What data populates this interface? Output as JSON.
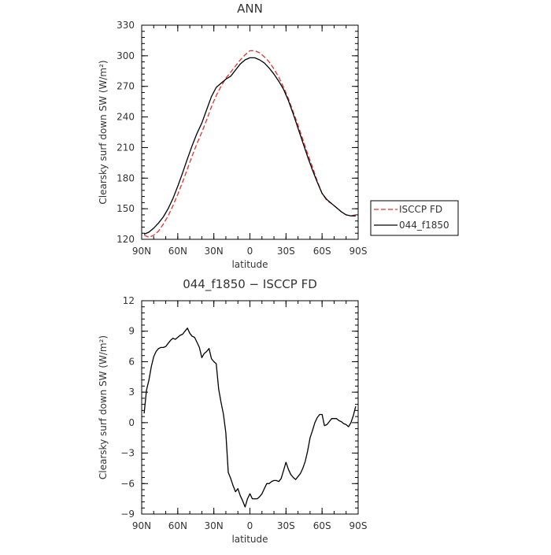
{
  "chart_data": [
    {
      "type": "line",
      "title": "ANN",
      "xlabel": "latitude",
      "ylabel": "Clearsky surf down SW (W/m²)",
      "xlim": [
        90,
        -90
      ],
      "ylim": [
        120,
        330
      ],
      "x_ticks": [
        90,
        60,
        30,
        0,
        -30,
        -60,
        -90
      ],
      "x_tick_labels": [
        "90N",
        "60N",
        "30N",
        "0",
        "30S",
        "60S",
        "90S"
      ],
      "y_ticks": [
        120,
        150,
        180,
        210,
        240,
        270,
        300,
        330
      ],
      "y_tick_labels": [
        "120",
        "150",
        "180",
        "210",
        "240",
        "270",
        "300",
        "330"
      ],
      "legend_position": "right",
      "series": [
        {
          "name": "ISCCP FD",
          "color": "#e8302a",
          "dash": "dashed",
          "x": [
            88,
            84,
            80,
            76,
            72,
            68,
            64,
            60,
            56,
            52,
            48,
            44,
            40,
            36,
            32,
            28,
            24,
            20,
            16,
            12,
            8,
            4,
            0,
            -4,
            -8,
            -12,
            -16,
            -20,
            -24,
            -28,
            -32,
            -36,
            -40,
            -44,
            -48,
            -52,
            -56,
            -60,
            -64,
            -68,
            -72,
            -76,
            -80,
            -84,
            -88
          ],
          "y": [
            124,
            122,
            124,
            128,
            135,
            143,
            153,
            164,
            176,
            189,
            202,
            214,
            225,
            237,
            250,
            261,
            270,
            278,
            284,
            290,
            296,
            301,
            305,
            305,
            303,
            299,
            294,
            287,
            279,
            269,
            258,
            245,
            232,
            218,
            204,
            191,
            177,
            165,
            158,
            155,
            151,
            147,
            144,
            143,
            144
          ]
        },
        {
          "name": "044_f1850",
          "color": "#000000",
          "dash": "solid",
          "x": [
            88,
            84,
            80,
            76,
            72,
            68,
            64,
            60,
            56,
            52,
            48,
            44,
            40,
            36,
            32,
            28,
            24,
            20,
            16,
            12,
            8,
            4,
            0,
            -4,
            -8,
            -12,
            -16,
            -20,
            -24,
            -28,
            -32,
            -36,
            -40,
            -44,
            -48,
            -52,
            -56,
            -60,
            -64,
            -68,
            -72,
            -76,
            -80,
            -84,
            -88
          ],
          "y": [
            125,
            127,
            131,
            136,
            142,
            150,
            160,
            172,
            185,
            199,
            212,
            224,
            234,
            247,
            260,
            269,
            273,
            277,
            280,
            286,
            292,
            296,
            298,
            298,
            296,
            293,
            288,
            282,
            275,
            267,
            256,
            243,
            229,
            215,
            201,
            188,
            176,
            165,
            159,
            155,
            151,
            147,
            144,
            143,
            143
          ]
        }
      ]
    },
    {
      "type": "line",
      "title": "044_f1850 − ISCCP FD",
      "xlabel": "latitude",
      "ylabel": "Clearsky surf down SW (W/m²)",
      "xlim": [
        90,
        -90
      ],
      "ylim": [
        -9,
        12
      ],
      "x_ticks": [
        90,
        60,
        30,
        0,
        -30,
        -60,
        -90
      ],
      "x_tick_labels": [
        "90N",
        "60N",
        "30N",
        "0",
        "30S",
        "60S",
        "90S"
      ],
      "y_ticks": [
        -9,
        -6,
        -3,
        0,
        3,
        6,
        9,
        12
      ],
      "y_tick_labels": [
        "−9",
        "−6",
        "−3",
        "0",
        "3",
        "6",
        "9",
        "12"
      ],
      "series": [
        {
          "color": "#000000",
          "dash": "solid",
          "x": [
            88,
            86,
            84,
            82,
            80,
            78,
            76,
            74,
            72,
            70,
            68,
            66,
            64,
            62,
            60,
            58,
            56,
            54,
            52,
            50,
            48,
            46,
            44,
            42,
            40,
            38,
            36,
            34,
            32,
            30,
            28,
            26,
            24,
            22,
            20,
            18,
            16,
            14,
            12,
            10,
            8,
            6,
            4,
            2,
            0,
            -2,
            -4,
            -6,
            -8,
            -10,
            -12,
            -14,
            -16,
            -18,
            -20,
            -22,
            -24,
            -26,
            -28,
            -30,
            -32,
            -34,
            -36,
            -38,
            -40,
            -42,
            -44,
            -46,
            -48,
            -50,
            -52,
            -54,
            -56,
            -58,
            -60,
            -62,
            -64,
            -66,
            -68,
            -70,
            -72,
            -74,
            -76,
            -78,
            -80,
            -82,
            -84,
            -86,
            -88
          ],
          "y": [
            0.9,
            3.2,
            4.2,
            5.5,
            6.5,
            7.0,
            7.3,
            7.4,
            7.4,
            7.5,
            7.8,
            8.1,
            8.3,
            8.2,
            8.4,
            8.6,
            8.7,
            9.0,
            9.3,
            8.8,
            8.5,
            8.4,
            7.9,
            7.4,
            6.4,
            6.8,
            7.0,
            7.3,
            6.3,
            6.0,
            5.8,
            3.3,
            2.0,
            0.8,
            -1.0,
            -4.9,
            -5.5,
            -6.2,
            -6.8,
            -6.5,
            -7.2,
            -7.7,
            -8.3,
            -7.5,
            -7.0,
            -7.5,
            -7.5,
            -7.5,
            -7.3,
            -7.0,
            -6.5,
            -6.0,
            -6.0,
            -5.8,
            -5.7,
            -5.7,
            -5.8,
            -5.5,
            -4.7,
            -3.9,
            -4.6,
            -5.1,
            -5.4,
            -5.6,
            -5.3,
            -5.0,
            -4.5,
            -3.8,
            -2.8,
            -1.5,
            -0.8,
            0.0,
            0.5,
            0.8,
            0.8,
            -0.3,
            -0.2,
            0.1,
            0.4,
            0.4,
            0.4,
            0.2,
            0.1,
            -0.1,
            -0.2,
            -0.4,
            0.0,
            0.7,
            1.6
          ]
        }
      ]
    }
  ],
  "legend": {
    "items": [
      "ISCCP FD",
      "044_f1850"
    ]
  }
}
